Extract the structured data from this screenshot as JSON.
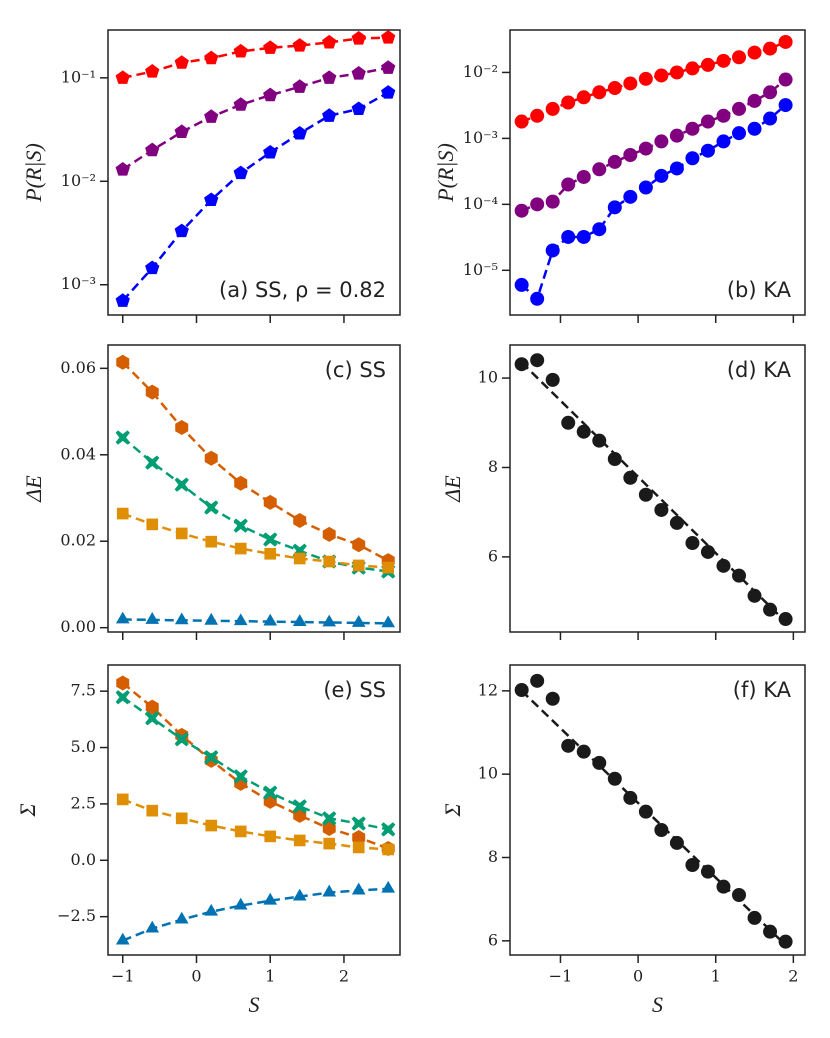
{
  "chart_data": [
    {
      "type": "line",
      "yscale": "log",
      "ylabel": "P(R|S)",
      "annotation": "(a) SS, ρ = 0.82",
      "x": [
        -1,
        -0.6,
        -0.2,
        0.2,
        0.6,
        1.0,
        1.4,
        1.8,
        2.2,
        2.6
      ],
      "xlim": [
        -1.2,
        2.76
      ],
      "xticks": [
        -1,
        0,
        1,
        2
      ],
      "ylim": [
        0.00051,
        0.29
      ],
      "yticks": [
        {
          "value": 0.001,
          "label": "10⁻³"
        },
        {
          "value": 0.01,
          "label": "10⁻²"
        },
        {
          "value": 0.1,
          "label": "10⁻¹"
        }
      ],
      "series": [
        {
          "color": "#ff0000",
          "marker": "pentagon",
          "linestyle": "dashed",
          "values": [
            0.1,
            0.115,
            0.14,
            0.155,
            0.18,
            0.195,
            0.205,
            0.22,
            0.24,
            0.245
          ]
        },
        {
          "color": "#800080",
          "marker": "pentagon",
          "linestyle": "dashed",
          "values": [
            0.013,
            0.02,
            0.03,
            0.042,
            0.055,
            0.068,
            0.082,
            0.1,
            0.11,
            0.125
          ]
        },
        {
          "color": "#0000ff",
          "marker": "pentagon",
          "linestyle": "dashed",
          "values": [
            0.0007,
            0.00145,
            0.0033,
            0.0066,
            0.012,
            0.019,
            0.029,
            0.043,
            0.05,
            0.072
          ]
        }
      ]
    },
    {
      "type": "line",
      "yscale": "log",
      "ylabel": "P(R|S)",
      "annotation": "(b) KA",
      "x": [
        -1.5,
        -1.3,
        -1.1,
        -0.9,
        -0.7,
        -0.5,
        -0.3,
        -0.1,
        0.1,
        0.3,
        0.5,
        0.7,
        0.9,
        1.1,
        1.3,
        1.5,
        1.7,
        1.9
      ],
      "xlim": [
        -1.65,
        2.15
      ],
      "xticks": [
        -1,
        0,
        1,
        2
      ],
      "ylim": [
        2.1e-06,
        0.044
      ],
      "yticks": [
        {
          "value": 1e-05,
          "label": "10⁻⁵"
        },
        {
          "value": 0.0001,
          "label": "10⁻⁴"
        },
        {
          "value": 0.001,
          "label": "10⁻³"
        },
        {
          "value": 0.01,
          "label": "10⁻²"
        }
      ],
      "series": [
        {
          "color": "#ff0000",
          "marker": "circle",
          "linestyle": "dashed",
          "values": [
            0.0018,
            0.0022,
            0.0028,
            0.0035,
            0.0042,
            0.005,
            0.0058,
            0.0068,
            0.008,
            0.009,
            0.01,
            0.0115,
            0.013,
            0.015,
            0.017,
            0.02,
            0.023,
            0.029
          ]
        },
        {
          "color": "#800080",
          "marker": "circle",
          "linestyle": "dashed",
          "values": [
            8e-05,
            0.0001,
            0.00011,
            0.0002,
            0.00026,
            0.00034,
            0.00044,
            0.00056,
            0.0007,
            0.0009,
            0.0011,
            0.0014,
            0.0018,
            0.0022,
            0.0028,
            0.0037,
            0.005,
            0.0078
          ]
        },
        {
          "color": "#0000ff",
          "marker": "circle",
          "linestyle": "dashed",
          "values": [
            6e-06,
            3.7e-06,
            2e-05,
            3.2e-05,
            3.2e-05,
            4.2e-05,
            9e-05,
            0.00013,
            0.00018,
            0.00027,
            0.00035,
            0.0005,
            0.00065,
            0.0009,
            0.0012,
            0.0014,
            0.002,
            0.0032
          ]
        }
      ]
    },
    {
      "type": "line",
      "ylabel": "ΔE",
      "annotation": "(c) SS",
      "x": [
        -1,
        -0.6,
        -0.2,
        0.2,
        0.6,
        1.0,
        1.4,
        1.8,
        2.2,
        2.6
      ],
      "xlim": [
        -1.2,
        2.76
      ],
      "xticks": [
        -1,
        0,
        1,
        2
      ],
      "ylim": [
        -0.001,
        0.0654
      ],
      "yticks": [
        {
          "value": 0,
          "label": "0.00"
        },
        {
          "value": 0.02,
          "label": "0.02"
        },
        {
          "value": 0.04,
          "label": "0.04"
        },
        {
          "value": 0.06,
          "label": "0.06"
        }
      ],
      "series": [
        {
          "color": "#d55e00",
          "marker": "hexagon",
          "linestyle": "dashed",
          "values": [
            0.0614,
            0.0545,
            0.0463,
            0.0392,
            0.0334,
            0.029,
            0.0248,
            0.0216,
            0.0192,
            0.0155
          ]
        },
        {
          "color": "#029e73",
          "marker": "cross",
          "linestyle": "dashed",
          "values": [
            0.044,
            0.0382,
            0.0331,
            0.0278,
            0.0236,
            0.0204,
            0.0178,
            0.0153,
            0.0139,
            0.013
          ]
        },
        {
          "color": "#de8f05",
          "marker": "square",
          "linestyle": "dashed",
          "values": [
            0.0264,
            0.0239,
            0.0218,
            0.0199,
            0.0183,
            0.0171,
            0.016,
            0.0153,
            0.0144,
            0.0139
          ]
        },
        {
          "color": "#0173b2",
          "marker": "triangle",
          "linestyle": "dashed",
          "values": [
            0.0019,
            0.0018,
            0.0017,
            0.0016,
            0.0015,
            0.0014,
            0.0013,
            0.0012,
            0.0011,
            0.001
          ]
        }
      ]
    },
    {
      "type": "line",
      "ylabel": "ΔE",
      "annotation": "(d) KA",
      "x": [
        -1.5,
        -1.3,
        -1.1,
        -0.9,
        -0.7,
        -0.5,
        -0.3,
        -0.1,
        0.1,
        0.3,
        0.5,
        0.7,
        0.9,
        1.1,
        1.3,
        1.5,
        1.7,
        1.9
      ],
      "xlim": [
        -1.65,
        2.15
      ],
      "xticks": [
        -1,
        0,
        1,
        2
      ],
      "ylim": [
        4.32,
        10.74
      ],
      "yticks": [
        6,
        8,
        10
      ],
      "series": [
        {
          "color": "#1a1a1a",
          "marker": "circle",
          "linestyle": "none",
          "values": [
            10.31,
            10.4,
            9.96,
            9.0,
            8.8,
            8.6,
            8.19,
            7.77,
            7.39,
            7.05,
            6.76,
            6.31,
            6.11,
            5.8,
            5.58,
            5.13,
            4.82,
            4.61
          ]
        },
        {
          "color": "#1a1a1a",
          "marker": "none",
          "linestyle": "dashed",
          "x": [
            -1.5,
            1.9
          ],
          "values": [
            10.35,
            4.55
          ]
        }
      ]
    },
    {
      "type": "line",
      "ylabel": "Σ",
      "xlabel": "S",
      "annotation": "(e) SS",
      "x": [
        -1,
        -0.6,
        -0.2,
        0.2,
        0.6,
        1.0,
        1.4,
        1.8,
        2.2,
        2.6
      ],
      "xlim": [
        -1.2,
        2.76
      ],
      "xticks": [
        {
          "value": -1,
          "label": "−1"
        },
        0,
        1,
        2
      ],
      "ylim": [
        -4.2,
        8.66
      ],
      "yticks": [
        {
          "value": -2.5,
          "label": "−2.5"
        },
        {
          "value": 0,
          "label": "0.0"
        },
        2.5,
        {
          "value": 5,
          "label": "5.0"
        },
        7.5
      ],
      "series": [
        {
          "color": "#d55e00",
          "marker": "hexagon",
          "linestyle": "dashed",
          "values": [
            7.86,
            6.79,
            5.54,
            4.43,
            3.41,
            2.61,
            1.99,
            1.41,
            1.01,
            0.52
          ]
        },
        {
          "color": "#029e73",
          "marker": "cross",
          "linestyle": "dashed",
          "values": [
            7.23,
            6.3,
            5.37,
            4.57,
            3.72,
            3.0,
            2.39,
            1.86,
            1.63,
            1.37
          ]
        },
        {
          "color": "#de8f05",
          "marker": "square",
          "linestyle": "dashed",
          "values": [
            2.7,
            2.2,
            1.86,
            1.54,
            1.28,
            1.06,
            0.88,
            0.74,
            0.57,
            0.48
          ]
        },
        {
          "color": "#0173b2",
          "marker": "triangle",
          "linestyle": "dashed",
          "values": [
            -3.56,
            -3.03,
            -2.63,
            -2.28,
            -2.01,
            -1.79,
            -1.61,
            -1.43,
            -1.34,
            -1.26
          ]
        }
      ]
    },
    {
      "type": "line",
      "ylabel": "Σ",
      "xlabel": "S",
      "annotation": "(f) KA",
      "x": [
        -1.5,
        -1.3,
        -1.1,
        -0.9,
        -0.7,
        -0.5,
        -0.3,
        -0.1,
        0.1,
        0.3,
        0.5,
        0.7,
        0.9,
        1.1,
        1.3,
        1.5,
        1.7,
        1.9
      ],
      "xlim": [
        -1.65,
        2.15
      ],
      "xticks": [
        {
          "value": -1,
          "label": "−1"
        },
        0,
        1,
        2
      ],
      "ylim": [
        5.66,
        12.62
      ],
      "yticks": [
        6,
        8,
        10,
        12
      ],
      "series": [
        {
          "color": "#1a1a1a",
          "marker": "circle",
          "linestyle": "none",
          "values": [
            12.02,
            12.24,
            11.81,
            10.68,
            10.54,
            10.27,
            9.89,
            9.43,
            9.1,
            8.66,
            8.35,
            7.82,
            7.66,
            7.3,
            7.1,
            6.55,
            6.22,
            5.98
          ]
        },
        {
          "color": "#1a1a1a",
          "marker": "none",
          "linestyle": "dashed",
          "x": [
            -1.5,
            1.9
          ],
          "values": [
            12.0,
            5.9
          ]
        }
      ]
    }
  ]
}
